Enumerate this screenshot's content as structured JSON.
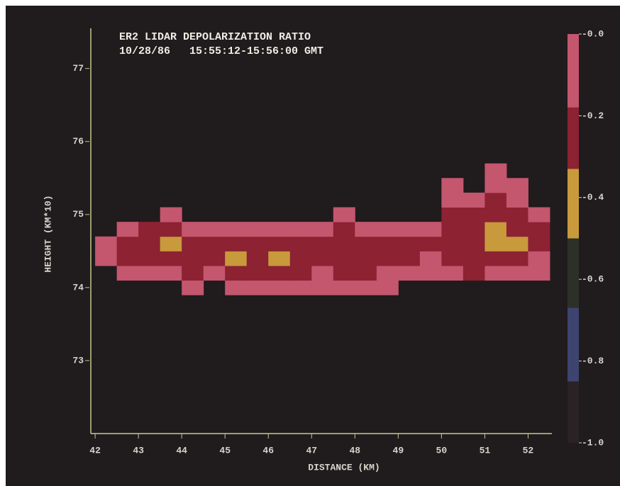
{
  "chart_data": {
    "type": "heatmap",
    "title": "ER2 LIDAR DEPOLARIZATION RATIO",
    "subtitle": "10/28/86   15:55:12-15:56:00 GMT",
    "x_label": "DISTANCE (KM)",
    "y_label": "HEIGHT (KM*10)",
    "xlim": [
      41.9,
      52.55
    ],
    "ylim": [
      72,
      77.55
    ],
    "xticks": [
      42,
      43,
      44,
      45,
      46,
      47,
      48,
      49,
      50,
      51,
      52
    ],
    "yticks": [
      73,
      74,
      75,
      76,
      77
    ],
    "x": [
      42.25,
      42.75,
      43.25,
      43.75,
      44.25,
      44.75,
      45.25,
      45.75,
      46.25,
      46.75,
      47.25,
      47.75,
      48.25,
      48.75,
      49.25,
      49.75,
      50.25,
      50.75,
      51.25,
      51.75,
      52.25
    ],
    "y": [
      74.0,
      74.2,
      74.4,
      74.6,
      74.8,
      75.0,
      75.2,
      75.4,
      75.6
    ],
    "z": [
      [
        null,
        null,
        null,
        null,
        -0.1,
        null,
        -0.1,
        -0.1,
        -0.1,
        -0.1,
        -0.1,
        -0.1,
        -0.1,
        -0.1,
        null,
        null,
        null,
        null,
        null,
        null,
        null
      ],
      [
        null,
        -0.1,
        -0.1,
        -0.1,
        -0.2,
        -0.1,
        -0.3,
        -0.2,
        -0.2,
        -0.2,
        -0.1,
        -0.2,
        -0.2,
        -0.1,
        -0.1,
        -0.1,
        -0.1,
        -0.2,
        -0.1,
        -0.1,
        -0.1
      ],
      [
        -0.1,
        -0.2,
        -0.2,
        -0.3,
        -0.3,
        -0.2,
        -0.4,
        -0.3,
        -0.4,
        -0.3,
        -0.2,
        -0.3,
        -0.3,
        -0.2,
        -0.2,
        -0.1,
        -0.2,
        -0.3,
        -0.2,
        -0.2,
        -0.1
      ],
      [
        -0.1,
        -0.2,
        -0.3,
        -0.4,
        -0.2,
        -0.2,
        -0.3,
        -0.2,
        -0.3,
        -0.2,
        -0.3,
        -0.2,
        -0.3,
        -0.3,
        -0.2,
        -0.2,
        -0.3,
        -0.3,
        -0.5,
        -0.4,
        -0.2
      ],
      [
        null,
        -0.1,
        -0.2,
        -0.3,
        -0.1,
        -0.1,
        -0.1,
        -0.1,
        -0.1,
        -0.1,
        -0.1,
        -0.2,
        -0.1,
        -0.1,
        -0.1,
        -0.1,
        -0.3,
        -0.2,
        -0.4,
        -0.3,
        -0.2
      ],
      [
        null,
        null,
        null,
        -0.1,
        null,
        null,
        null,
        null,
        null,
        null,
        null,
        -0.1,
        null,
        null,
        null,
        null,
        -0.2,
        -0.2,
        -0.3,
        -0.2,
        -0.1
      ],
      [
        null,
        null,
        null,
        null,
        null,
        null,
        null,
        null,
        null,
        null,
        null,
        null,
        null,
        null,
        null,
        null,
        -0.1,
        -0.1,
        -0.2,
        -0.1,
        null
      ],
      [
        null,
        null,
        null,
        null,
        null,
        null,
        null,
        null,
        null,
        null,
        null,
        null,
        null,
        null,
        null,
        null,
        -0.1,
        null,
        -0.1,
        -0.1,
        null
      ],
      [
        null,
        null,
        null,
        null,
        null,
        null,
        null,
        null,
        null,
        null,
        null,
        null,
        null,
        null,
        null,
        null,
        null,
        null,
        -0.1,
        null,
        null
      ]
    ],
    "colorscale": [
      {
        "from": 0,
        "to": -0.18,
        "color": "#c4566e"
      },
      {
        "from": -0.18,
        "to": -0.33,
        "color": "#8c2232"
      },
      {
        "from": -0.33,
        "to": -0.5,
        "color": "#c89a3c"
      },
      {
        "from": -0.5,
        "to": -0.67,
        "color": "#2c3028"
      },
      {
        "from": -0.67,
        "to": -0.85,
        "color": "#3e4470"
      },
      {
        "from": -0.85,
        "to": -1,
        "color": "#2a2224"
      }
    ],
    "clim": [
      0,
      -1
    ],
    "cticks": [
      {
        "value": 0,
        "label": "-0.0"
      },
      -0.2,
      -0.4,
      -0.6,
      -0.8,
      {
        "value": -1,
        "label": "-1.0"
      }
    ]
  }
}
